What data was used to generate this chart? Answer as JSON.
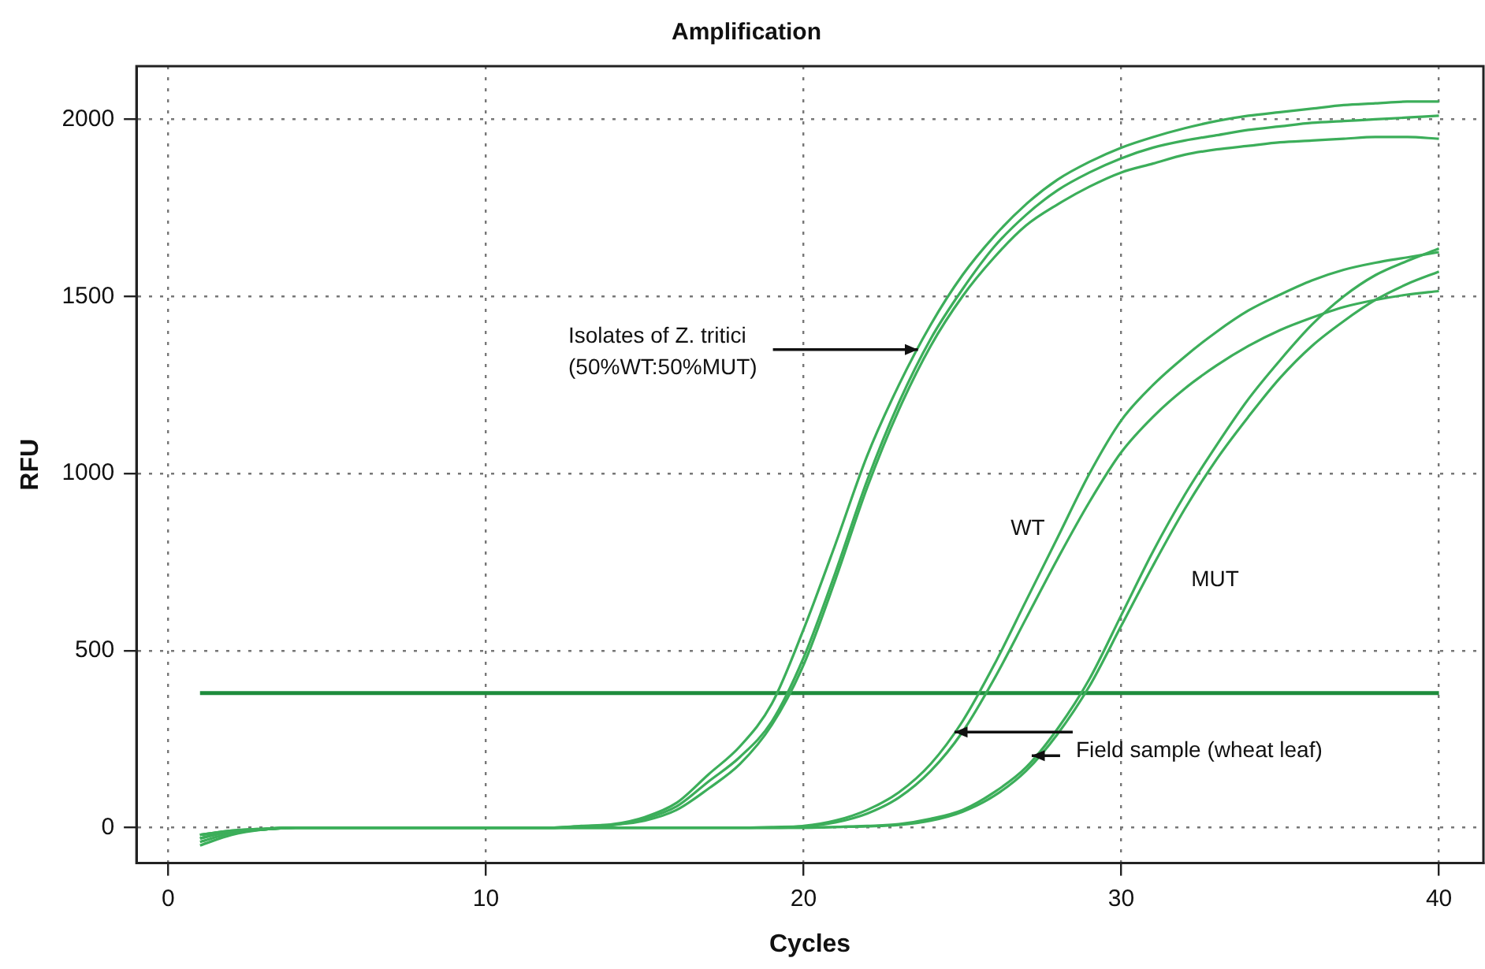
{
  "chart_data": {
    "type": "line",
    "title": "Amplification",
    "xlabel": "Cycles",
    "ylabel": "RFU",
    "x": [
      1,
      2,
      3,
      4,
      5,
      6,
      7,
      8,
      9,
      10,
      11,
      12,
      13,
      14,
      15,
      16,
      17,
      18,
      19,
      20,
      21,
      22,
      23,
      24,
      25,
      26,
      27,
      28,
      29,
      30,
      31,
      32,
      33,
      34,
      35,
      36,
      37,
      38,
      39,
      40
    ],
    "series": [
      {
        "color": "#3cae5a",
        "values": [
          -20,
          -10,
          -5,
          0,
          0,
          0,
          0,
          0,
          0,
          0,
          0,
          0,
          5,
          10,
          30,
          70,
          150,
          230,
          350,
          560,
          800,
          1050,
          1250,
          1420,
          1560,
          1670,
          1760,
          1830,
          1880,
          1920,
          1950,
          1975,
          1995,
          2010,
          2020,
          2030,
          2040,
          2045,
          2050,
          2050
        ]
      },
      {
        "color": "#3cae5a",
        "values": [
          -40,
          -15,
          -5,
          0,
          0,
          0,
          0,
          0,
          0,
          0,
          0,
          0,
          3,
          8,
          25,
          60,
          130,
          200,
          300,
          480,
          720,
          980,
          1200,
          1380,
          1520,
          1640,
          1730,
          1800,
          1850,
          1890,
          1920,
          1940,
          1955,
          1970,
          1980,
          1990,
          1995,
          2000,
          2005,
          2010
        ]
      },
      {
        "color": "#3cae5a",
        "values": [
          -50,
          -20,
          -5,
          0,
          0,
          0,
          0,
          0,
          0,
          0,
          0,
          0,
          3,
          8,
          20,
          50,
          110,
          180,
          290,
          460,
          700,
          960,
          1180,
          1360,
          1500,
          1610,
          1700,
          1760,
          1810,
          1850,
          1875,
          1900,
          1915,
          1925,
          1935,
          1940,
          1945,
          1950,
          1950,
          1945
        ]
      },
      {
        "color": "#3cae5a",
        "values": [
          -30,
          -10,
          -5,
          0,
          0,
          0,
          0,
          0,
          0,
          0,
          0,
          0,
          0,
          0,
          0,
          0,
          0,
          0,
          2,
          5,
          20,
          50,
          100,
          180,
          300,
          460,
          640,
          820,
          1000,
          1150,
          1250,
          1330,
          1400,
          1460,
          1505,
          1545,
          1575,
          1595,
          1610,
          1625
        ]
      },
      {
        "color": "#3cae5a",
        "values": [
          -30,
          -10,
          -5,
          0,
          0,
          0,
          0,
          0,
          0,
          0,
          0,
          0,
          0,
          0,
          0,
          0,
          0,
          0,
          0,
          3,
          15,
          40,
          85,
          160,
          270,
          420,
          590,
          760,
          920,
          1060,
          1160,
          1240,
          1305,
          1360,
          1405,
          1440,
          1470,
          1490,
          1505,
          1515
        ]
      },
      {
        "color": "#3cae5a",
        "values": [
          -20,
          -8,
          -3,
          0,
          0,
          0,
          0,
          0,
          0,
          0,
          0,
          0,
          0,
          0,
          0,
          0,
          0,
          0,
          0,
          0,
          2,
          5,
          10,
          25,
          50,
          100,
          170,
          280,
          420,
          600,
          780,
          940,
          1080,
          1210,
          1320,
          1420,
          1500,
          1560,
          1600,
          1635
        ]
      },
      {
        "color": "#3cae5a",
        "values": [
          -20,
          -8,
          -3,
          0,
          0,
          0,
          0,
          0,
          0,
          0,
          0,
          0,
          0,
          0,
          0,
          0,
          0,
          0,
          0,
          0,
          2,
          4,
          8,
          20,
          45,
          90,
          160,
          265,
          400,
          570,
          740,
          900,
          1040,
          1160,
          1270,
          1360,
          1430,
          1490,
          1535,
          1570
        ]
      }
    ],
    "xlim": [
      -1,
      41.4
    ],
    "xticks": [
      0,
      10,
      20,
      30,
      40
    ],
    "ylim": [
      -100,
      2150
    ],
    "yticks": [
      0,
      500,
      1000,
      1500,
      2000
    ],
    "grid": true,
    "marker": "none",
    "line_style": "solid",
    "legend": false,
    "ref_lines": [
      {
        "axis": "y",
        "value": 380,
        "color": "#1e8c3c"
      }
    ],
    "annotations": [
      {
        "text": "Isolates of Z. tritici\n(50%WT:50%MUT)",
        "x": 23.6,
        "y": 1350
      },
      "WT",
      "MUT",
      {
        "text": "Field sample (wheat leaf)",
        "x": 24.75,
        "y": 270
      }
    ]
  }
}
